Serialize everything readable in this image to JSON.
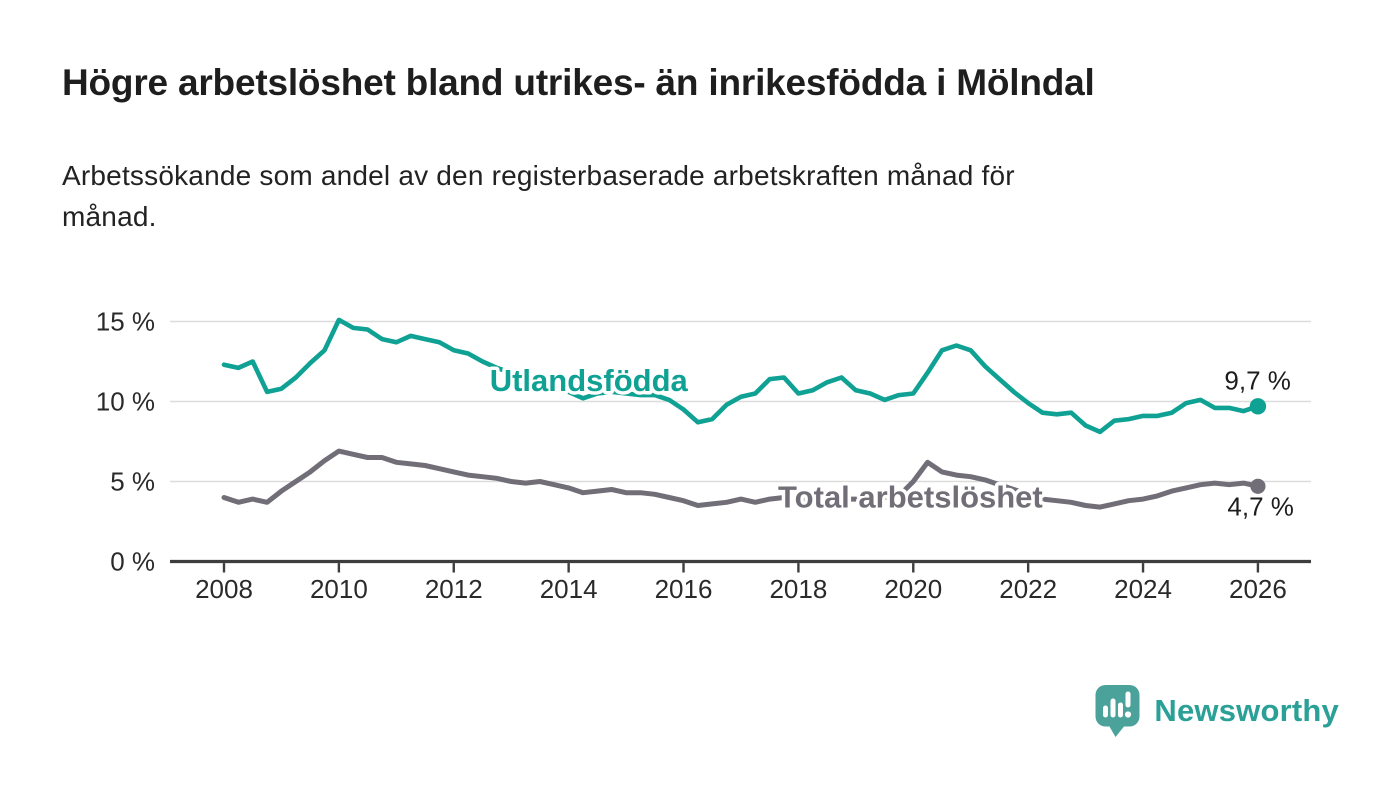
{
  "header": {
    "title": "Högre arbetslöshet bland utrikes- än inrikesfödda i Mölndal",
    "subtitle_lines": [
      "Arbetssökande som andel av den registerbaserade arbetskraften månad för",
      "månad."
    ]
  },
  "chart_data": {
    "type": "line",
    "title": "Högre arbetslöshet bland utrikes- än inrikesfödda i Mölndal",
    "subtitle": "Arbetssökande som andel av den registerbaserade arbetskraften månad för månad.",
    "xlabel": "",
    "ylabel": "",
    "y_unit": "%",
    "grid": "horizontal-only",
    "legend_position": "inline-labels-on-lines",
    "x_start": 2008,
    "x_step": 0.25,
    "x_end": 2026,
    "xlim": [
      2007.05,
      2026.95
    ],
    "ylim": [
      0,
      16.8
    ],
    "x_ticks": [
      2008,
      2010,
      2012,
      2014,
      2016,
      2018,
      2020,
      2022,
      2024,
      2026
    ],
    "y_ticks": [
      {
        "value": 0,
        "label": "0 %"
      },
      {
        "value": 5,
        "label": "5 %"
      },
      {
        "value": 10,
        "label": "10 %"
      },
      {
        "value": 15,
        "label": "15 %"
      }
    ],
    "series": [
      {
        "name": "Utlandsfödda",
        "color": "#0fa193",
        "end_label": "9,7 %",
        "last_value": 9.7,
        "label_anchor": {
          "x": 2014.35,
          "y": 11.35
        },
        "values": [
          12.3,
          12.1,
          12.5,
          10.6,
          10.8,
          11.5,
          12.4,
          13.2,
          15.1,
          14.6,
          14.5,
          13.9,
          13.7,
          14.1,
          13.9,
          13.7,
          13.2,
          13.0,
          12.5,
          12.1,
          11.8,
          11.5,
          11.2,
          10.9,
          10.6,
          10.2,
          10.5,
          10.6,
          10.5,
          10.4,
          10.4,
          10.1,
          9.5,
          8.7,
          8.9,
          9.8,
          10.3,
          10.5,
          11.4,
          11.5,
          10.5,
          10.7,
          11.2,
          11.5,
          10.7,
          10.5,
          10.1,
          10.4,
          10.5,
          11.8,
          13.2,
          13.5,
          13.2,
          12.2,
          11.4,
          10.6,
          9.9,
          9.3,
          9.2,
          9.3,
          8.5,
          8.1,
          8.8,
          8.9,
          9.1,
          9.1,
          9.3,
          9.9,
          10.1,
          9.6,
          9.6,
          9.4,
          9.7
        ]
      },
      {
        "name": "Total arbetslöshet",
        "color": "#716e78",
        "end_label": "4,7 %",
        "last_value": 4.7,
        "label_anchor": {
          "x": 2019.95,
          "y": 4.05
        },
        "values": [
          4.0,
          3.7,
          3.9,
          3.7,
          4.4,
          5.0,
          5.6,
          6.3,
          6.9,
          6.7,
          6.5,
          6.5,
          6.2,
          6.1,
          6.0,
          5.8,
          5.6,
          5.4,
          5.3,
          5.2,
          5.0,
          4.9,
          5.0,
          4.8,
          4.6,
          4.3,
          4.4,
          4.5,
          4.3,
          4.3,
          4.2,
          4.0,
          3.8,
          3.5,
          3.6,
          3.7,
          3.9,
          3.7,
          3.9,
          4.0,
          3.9,
          3.9,
          3.9,
          3.9,
          3.9,
          4.0,
          4.0,
          4.1,
          5.0,
          6.2,
          5.6,
          5.4,
          5.3,
          5.1,
          4.8,
          4.5,
          4.2,
          3.9,
          3.8,
          3.7,
          3.5,
          3.4,
          3.6,
          3.8,
          3.9,
          4.1,
          4.4,
          4.6,
          4.8,
          4.9,
          4.8,
          4.9,
          4.7
        ]
      }
    ],
    "style": {
      "gridline_color": "#dcdcdc",
      "axis_color": "#3d3d3d",
      "tick_label_color": "#2a2a2a",
      "end_label_color": "#1d1d1d"
    }
  },
  "branding": {
    "wordmark": "Newsworthy",
    "icon": "newsworthy-logo-icon",
    "icon_color": "#4ba29b",
    "text_color": "#2aa096"
  }
}
